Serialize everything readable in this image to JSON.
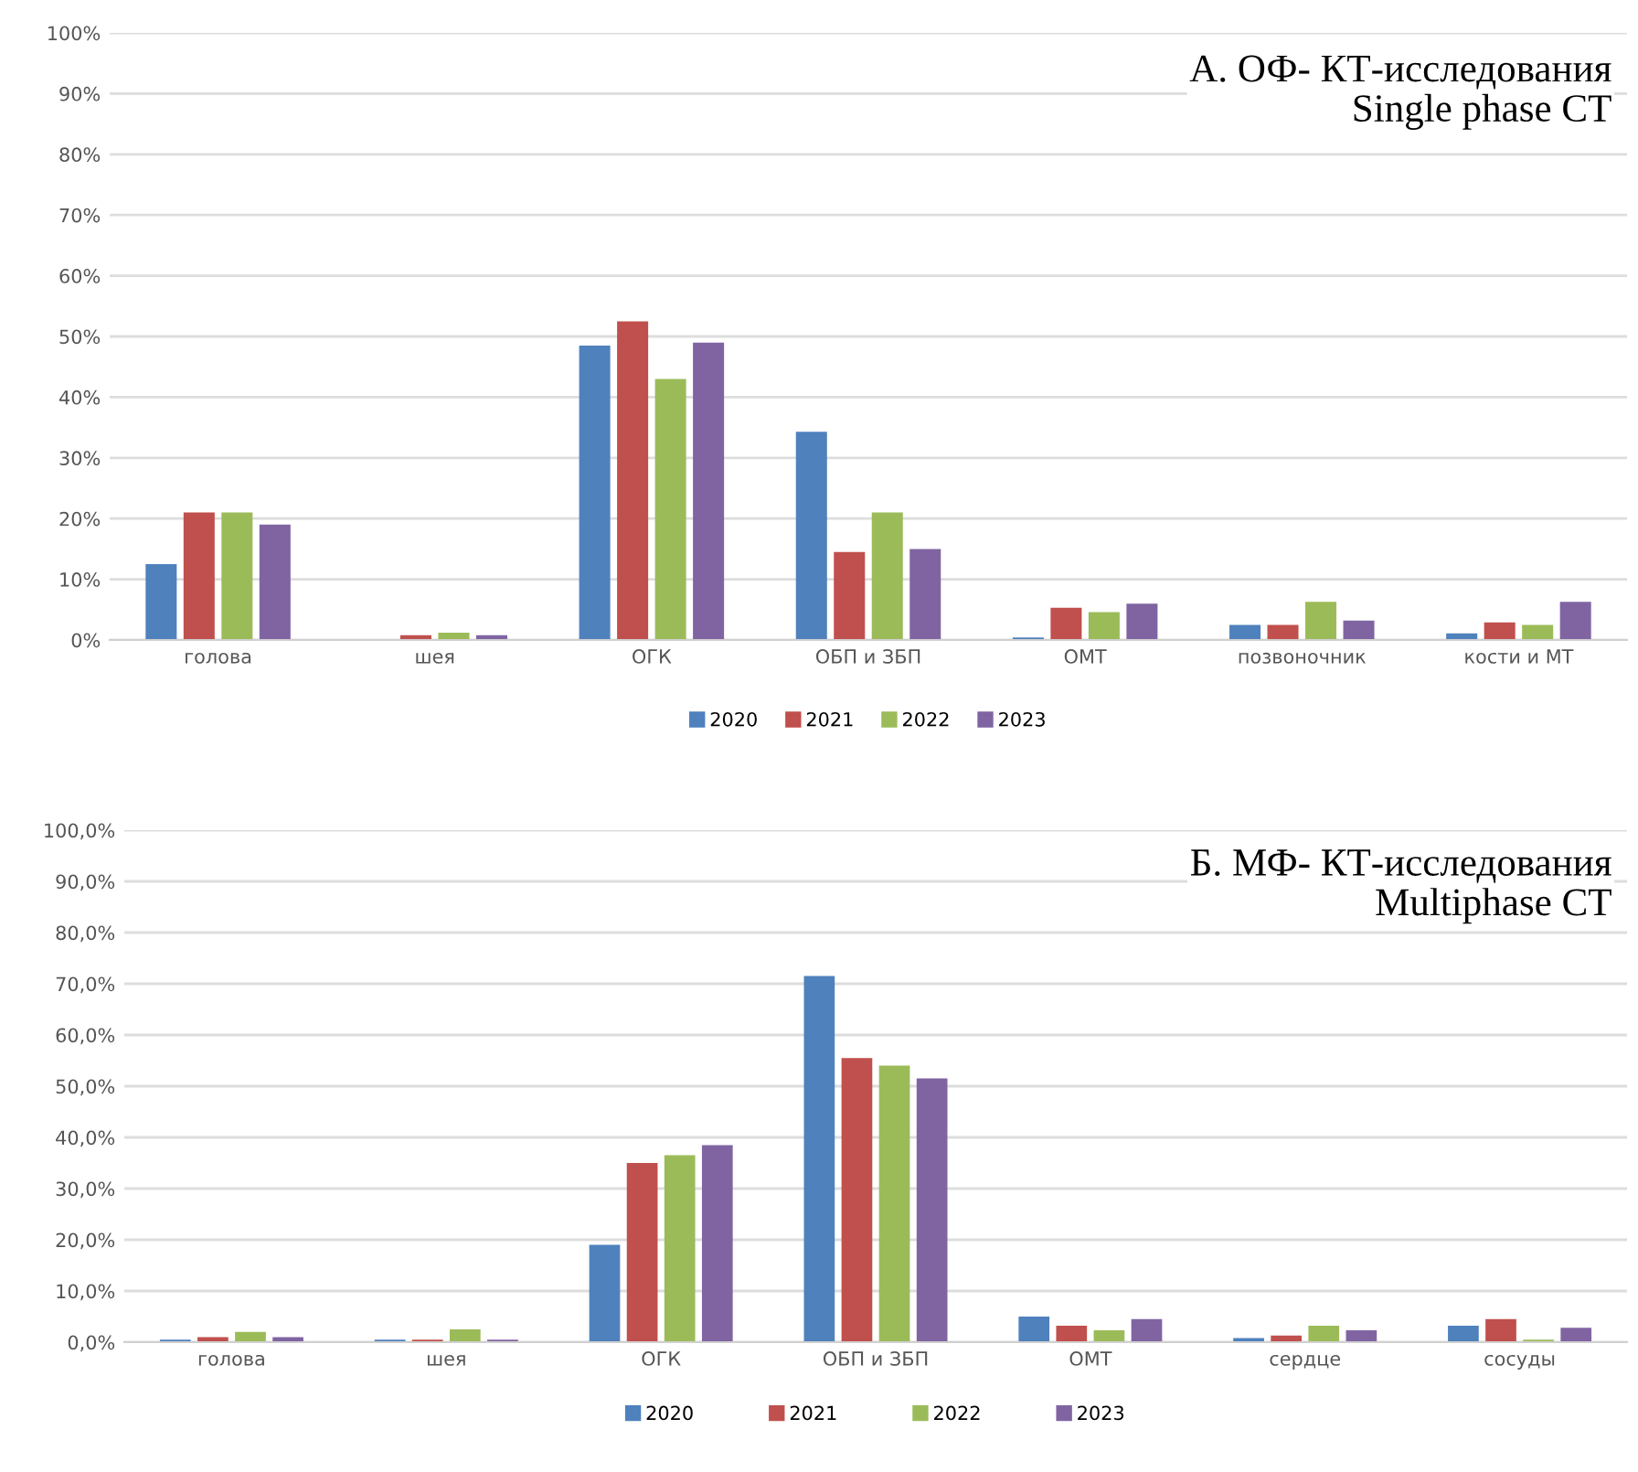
{
  "chart_data": [
    {
      "type": "bar",
      "title": "А. ОФ- КТ-исследования",
      "subtitle": "Single phase CT",
      "categories": [
        "голова",
        "шея",
        "ОГК",
        "ОБП и ЗБП",
        "ОМТ",
        "позвоночник",
        "кости и МТ"
      ],
      "series": [
        {
          "name": "2020",
          "color": "#4f81bd",
          "values": [
            12.5,
            0,
            48.5,
            34.3,
            0.4,
            2.5,
            1.1
          ]
        },
        {
          "name": "2021",
          "color": "#c0504d",
          "values": [
            21,
            0.8,
            52.5,
            14.5,
            5.3,
            2.5,
            2.9
          ]
        },
        {
          "name": "2022",
          "color": "#9bbb59",
          "values": [
            21,
            1.2,
            43,
            21,
            4.6,
            6.3,
            2.5
          ]
        },
        {
          "name": "2023",
          "color": "#8064a2",
          "values": [
            19,
            0.8,
            49,
            15,
            6,
            3.2,
            6.3
          ]
        }
      ],
      "ylim": [
        0,
        100
      ],
      "yticks": [
        {
          "value": 0,
          "label": "0%"
        },
        {
          "value": 10,
          "label": "10%"
        },
        {
          "value": 20,
          "label": "20%"
        },
        {
          "value": 30,
          "label": "30%"
        },
        {
          "value": 40,
          "label": "40%"
        },
        {
          "value": 50,
          "label": "50%"
        },
        {
          "value": 60,
          "label": "60%"
        },
        {
          "value": 70,
          "label": "70%"
        },
        {
          "value": 80,
          "label": "80%"
        },
        {
          "value": 90,
          "label": "90%"
        },
        {
          "value": 100,
          "label": "100%"
        }
      ],
      "grid": "y",
      "legend": "bottom"
    },
    {
      "type": "bar",
      "title": "Б. МФ- КТ-исследования",
      "subtitle": "Multiphase CT",
      "categories": [
        "голова",
        "шея",
        "ОГК",
        "ОБП и ЗБП",
        "ОМТ",
        "сердце",
        "сосуды"
      ],
      "series": [
        {
          "name": "2020",
          "color": "#4f81bd",
          "values": [
            0.5,
            0.5,
            19,
            71.5,
            5,
            0.8,
            3.2
          ]
        },
        {
          "name": "2021",
          "color": "#c0504d",
          "values": [
            1,
            0.5,
            35,
            55.5,
            3.2,
            1.3,
            4.5
          ]
        },
        {
          "name": "2022",
          "color": "#9bbb59",
          "values": [
            2,
            2.5,
            36.5,
            54,
            2.3,
            3.2,
            0.5
          ]
        },
        {
          "name": "2023",
          "color": "#8064a2",
          "values": [
            1,
            0.5,
            38.5,
            51.5,
            4.5,
            2.3,
            2.8
          ]
        }
      ],
      "ylim": [
        0,
        100
      ],
      "yticks": [
        {
          "value": 0,
          "label": "0,0%"
        },
        {
          "value": 10,
          "label": "10,0%"
        },
        {
          "value": 20,
          "label": "20,0%"
        },
        {
          "value": 30,
          "label": "30,0%"
        },
        {
          "value": 40,
          "label": "40,0%"
        },
        {
          "value": 50,
          "label": "50,0%"
        },
        {
          "value": 60,
          "label": "60,0%"
        },
        {
          "value": 70,
          "label": "70,0%"
        },
        {
          "value": 80,
          "label": "80,0%"
        },
        {
          "value": 90,
          "label": "90,0%"
        },
        {
          "value": 100,
          "label": "100,0%"
        }
      ],
      "grid": "y",
      "legend": "bottom"
    }
  ]
}
